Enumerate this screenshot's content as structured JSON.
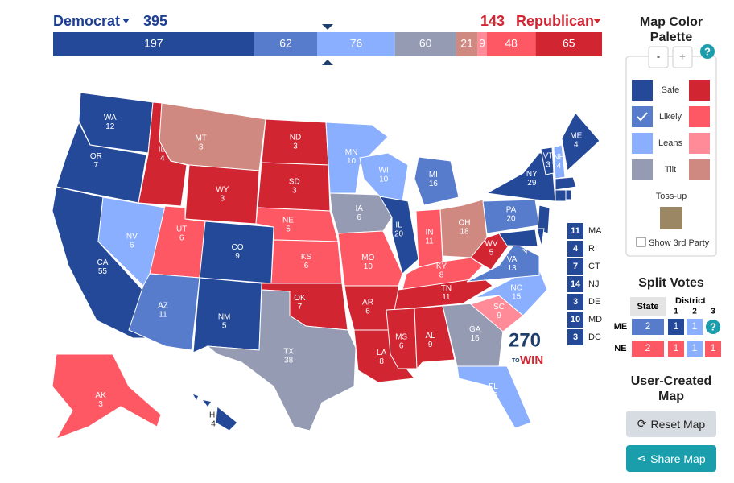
{
  "header": {
    "dem_label": "Democrat",
    "dem_total": 395,
    "rep_total": 143,
    "rep_label": "Republican",
    "dem_color": "#1c3f94",
    "rep_color": "#d22532"
  },
  "summary_bar": [
    {
      "value": 197,
      "color": "#244999"
    },
    {
      "value": 62,
      "color": "#577ccc"
    },
    {
      "value": 76,
      "color": "#8aafff"
    },
    {
      "value": 60,
      "color": "#949bb3"
    },
    {
      "value": 21,
      "color": "#cf8980"
    },
    {
      "value": 9,
      "color": "#ff8b98"
    },
    {
      "value": 48,
      "color": "#ff5865"
    },
    {
      "value": 65,
      "color": "#d22532"
    }
  ],
  "states": [
    {
      "abbr": "WA",
      "votes": 12,
      "color": "#244999"
    },
    {
      "abbr": "OR",
      "votes": 7,
      "color": "#244999"
    },
    {
      "abbr": "CA",
      "votes": 55,
      "color": "#244999"
    },
    {
      "abbr": "NV",
      "votes": 6,
      "color": "#8aafff"
    },
    {
      "abbr": "ID",
      "votes": 4,
      "color": "#d22532"
    },
    {
      "abbr": "MT",
      "votes": 3,
      "color": "#cf8980"
    },
    {
      "abbr": "WY",
      "votes": 3,
      "color": "#d22532"
    },
    {
      "abbr": "UT",
      "votes": 6,
      "color": "#ff5865"
    },
    {
      "abbr": "CO",
      "votes": 9,
      "color": "#244999"
    },
    {
      "abbr": "AZ",
      "votes": 11,
      "color": "#577ccc"
    },
    {
      "abbr": "NM",
      "votes": 5,
      "color": "#244999"
    },
    {
      "abbr": "ND",
      "votes": 3,
      "color": "#d22532"
    },
    {
      "abbr": "SD",
      "votes": 3,
      "color": "#d22532"
    },
    {
      "abbr": "NE",
      "votes": 5,
      "color": "#ff5865"
    },
    {
      "abbr": "KS",
      "votes": 6,
      "color": "#ff5865"
    },
    {
      "abbr": "OK",
      "votes": 7,
      "color": "#d22532"
    },
    {
      "abbr": "TX",
      "votes": 38,
      "color": "#949bb3"
    },
    {
      "abbr": "MN",
      "votes": 10,
      "color": "#8aafff"
    },
    {
      "abbr": "IA",
      "votes": 6,
      "color": "#949bb3"
    },
    {
      "abbr": "MO",
      "votes": 10,
      "color": "#ff5865"
    },
    {
      "abbr": "AR",
      "votes": 6,
      "color": "#d22532"
    },
    {
      "abbr": "LA",
      "votes": 8,
      "color": "#d22532"
    },
    {
      "abbr": "WI",
      "votes": 10,
      "color": "#8aafff"
    },
    {
      "abbr": "IL",
      "votes": 20,
      "color": "#244999"
    },
    {
      "abbr": "MI",
      "votes": 16,
      "color": "#577ccc"
    },
    {
      "abbr": "IN",
      "votes": 11,
      "color": "#ff5865"
    },
    {
      "abbr": "OH",
      "votes": 18,
      "color": "#cf8980"
    },
    {
      "abbr": "KY",
      "votes": 8,
      "color": "#ff5865"
    },
    {
      "abbr": "TN",
      "votes": 11,
      "color": "#d22532"
    },
    {
      "abbr": "MS",
      "votes": 6,
      "color": "#d22532"
    },
    {
      "abbr": "AL",
      "votes": 9,
      "color": "#d22532"
    },
    {
      "abbr": "GA",
      "votes": 16,
      "color": "#949bb3"
    },
    {
      "abbr": "FL",
      "votes": 29,
      "color": "#8aafff"
    },
    {
      "abbr": "SC",
      "votes": 9,
      "color": "#ff8b98"
    },
    {
      "abbr": "NC",
      "votes": 15,
      "color": "#8aafff"
    },
    {
      "abbr": "VA",
      "votes": 13,
      "color": "#577ccc"
    },
    {
      "abbr": "WV",
      "votes": 5,
      "color": "#d22532"
    },
    {
      "abbr": "PA",
      "votes": 20,
      "color": "#577ccc"
    },
    {
      "abbr": "NY",
      "votes": 29,
      "color": "#244999"
    },
    {
      "abbr": "VT",
      "votes": 3,
      "color": "#244999"
    },
    {
      "abbr": "NH",
      "votes": 4,
      "color": "#8aafff"
    },
    {
      "abbr": "ME",
      "votes": 4,
      "color": "#244999"
    },
    {
      "abbr": "AK",
      "votes": 3,
      "color": "#ff5865"
    },
    {
      "abbr": "HI",
      "votes": 4,
      "color": "#244999"
    },
    {
      "abbr": "MA",
      "votes": 11,
      "color": "#244999"
    },
    {
      "abbr": "RI",
      "votes": 4,
      "color": "#244999"
    },
    {
      "abbr": "CT",
      "votes": 7,
      "color": "#244999"
    },
    {
      "abbr": "NJ",
      "votes": 14,
      "color": "#244999"
    },
    {
      "abbr": "DE",
      "votes": 3,
      "color": "#244999"
    },
    {
      "abbr": "MD",
      "votes": 10,
      "color": "#244999"
    },
    {
      "abbr": "DC",
      "votes": 3,
      "color": "#244999"
    }
  ],
  "logo": {
    "number": "270",
    "small": "TO",
    "word": "WIN"
  },
  "palette": {
    "title": "Map Color Palette",
    "minus": "-",
    "plus": "+",
    "help": "?",
    "rows": [
      {
        "label": "Safe",
        "d": "#244999",
        "r": "#d22532"
      },
      {
        "label": "Likely",
        "d": "#577ccc",
        "r": "#ff5865"
      },
      {
        "label": "Leans",
        "d": "#8aafff",
        "r": "#ff8b98"
      },
      {
        "label": "Tilt",
        "d": "#949bb3",
        "r": "#cf8980"
      }
    ],
    "tossup": {
      "label": "Toss-up",
      "color": "#9c8764"
    },
    "third_party": "Show 3rd Party"
  },
  "split_votes": {
    "title": "Split Votes",
    "state_header": "State",
    "district_header": "District",
    "districts": [
      1,
      2,
      3
    ],
    "help": "?",
    "rows": [
      {
        "state": "ME",
        "cells": [
          {
            "value": 2,
            "color": "#577ccc"
          },
          {
            "value": 1,
            "color": "#244999"
          },
          {
            "value": 1,
            "color": "#8aafff"
          }
        ]
      },
      {
        "state": "NE",
        "cells": [
          {
            "value": 2,
            "color": "#ff5865"
          },
          {
            "value": 1,
            "color": "#ff5865"
          },
          {
            "value": 1,
            "color": "#8aafff"
          },
          {
            "value": 1,
            "color": "#ff5865"
          }
        ]
      }
    ]
  },
  "user_map": {
    "title": "User-Created Map",
    "reset": "Reset Map",
    "share": "Share Map"
  }
}
